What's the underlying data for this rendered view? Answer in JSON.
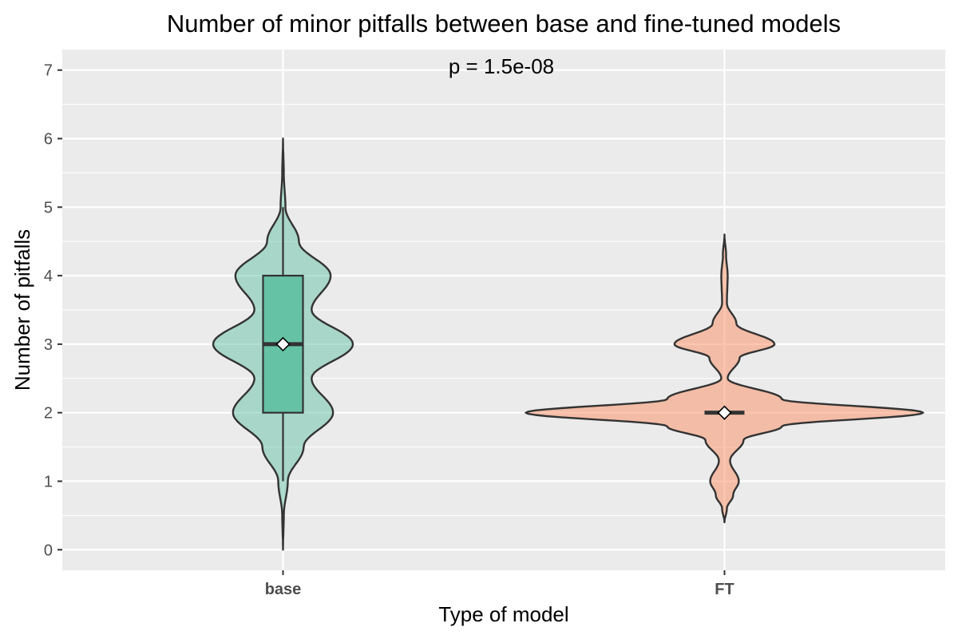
{
  "chart_data": {
    "type": "violin",
    "title": "Number of minor pitfalls between base and fine-tuned models",
    "xlabel": "Type of model",
    "ylabel": "Number of pitfalls",
    "annotation": "p = 1.5e-08",
    "categories": [
      "base",
      "FT"
    ],
    "ylim": [
      -0.3,
      7.3
    ],
    "yticks": [
      0,
      1,
      2,
      3,
      4,
      5,
      6,
      7
    ],
    "grid": true,
    "background": "#ebebeb",
    "series": [
      {
        "category": "base",
        "color": "#66c2a5",
        "fill_opacity": 0.5,
        "y_range": [
          0,
          6
        ],
        "density_profile": [
          [
            0,
            0.0
          ],
          [
            0.5,
            0.01
          ],
          [
            1.0,
            0.06
          ],
          [
            1.5,
            0.26
          ],
          [
            2.0,
            0.63
          ],
          [
            2.5,
            0.36
          ],
          [
            3.0,
            0.88
          ],
          [
            3.5,
            0.36
          ],
          [
            4.0,
            0.6
          ],
          [
            4.5,
            0.2
          ],
          [
            5.0,
            0.03
          ],
          [
            5.5,
            0.01
          ],
          [
            6.0,
            0.0
          ]
        ],
        "box": {
          "q1": 2,
          "median": 3,
          "q3": 4,
          "whisker_low": 1,
          "whisker_high": 5
        },
        "mean": 3
      },
      {
        "category": "FT",
        "color": "#fc8d62",
        "fill_opacity": 0.5,
        "y_range": [
          0.4,
          4.6
        ],
        "density_profile": [
          [
            0.4,
            0.0
          ],
          [
            0.6,
            0.03
          ],
          [
            0.8,
            0.11
          ],
          [
            1.0,
            0.18
          ],
          [
            1.3,
            0.07
          ],
          [
            1.6,
            0.24
          ],
          [
            1.8,
            0.72
          ],
          [
            2.0,
            2.5
          ],
          [
            2.2,
            0.72
          ],
          [
            2.5,
            0.04
          ],
          [
            2.8,
            0.19
          ],
          [
            3.0,
            0.63
          ],
          [
            3.3,
            0.15
          ],
          [
            3.6,
            0.03
          ],
          [
            4.0,
            0.04
          ],
          [
            4.3,
            0.02
          ],
          [
            4.6,
            0.0
          ]
        ],
        "box": {
          "q1": 2,
          "median": 2,
          "q3": 2,
          "whisker_low": 2,
          "whisker_high": 2
        },
        "mean": 2
      }
    ]
  }
}
